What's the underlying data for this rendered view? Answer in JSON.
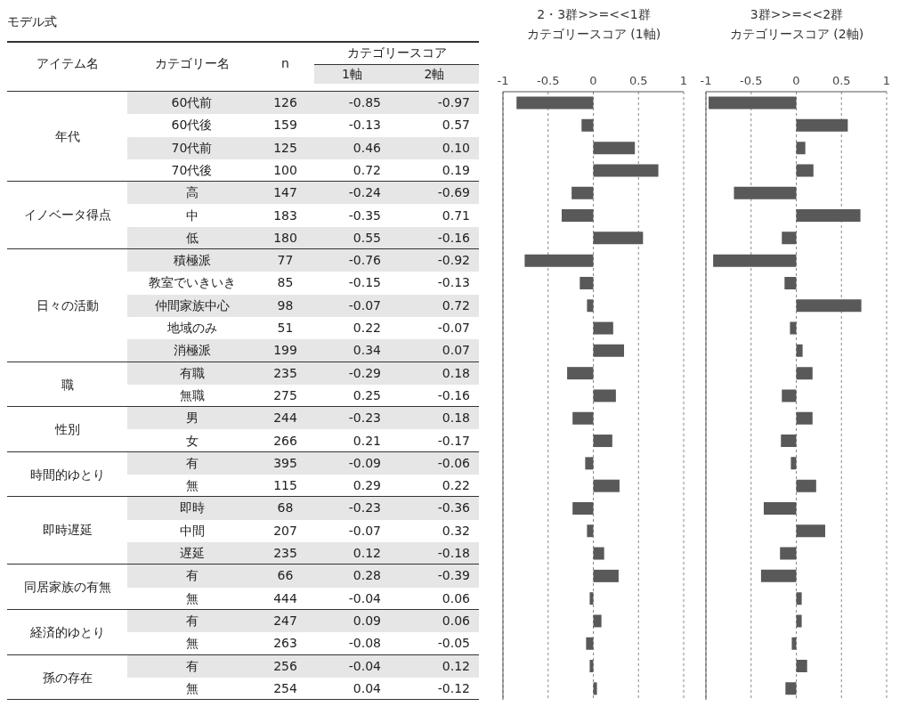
{
  "chart_data": [
    {
      "type": "bar",
      "orientation": "horizontal",
      "title": "2・3群>>=<<1群",
      "subtitle": "カテゴリースコア (1軸)",
      "categories": [
        "60代前",
        "60代後",
        "70代前",
        "70代後",
        "高",
        "中",
        "低",
        "積極派",
        "教室でいきいき",
        "仲間家族中心",
        "地域のみ",
        "消極派",
        "有職",
        "無職",
        "男",
        "女",
        "有",
        "無",
        "即時",
        "中間",
        "遅延",
        "有",
        "無",
        "有",
        "無",
        "有",
        "無"
      ],
      "values": [
        -0.85,
        -0.13,
        0.46,
        0.72,
        -0.24,
        -0.35,
        0.55,
        -0.76,
        -0.15,
        -0.07,
        0.22,
        0.34,
        -0.29,
        0.25,
        -0.23,
        0.21,
        -0.09,
        0.29,
        -0.23,
        -0.07,
        0.12,
        0.28,
        -0.04,
        0.09,
        -0.08,
        -0.04,
        0.04
      ],
      "value_labels": [
        "-0.85",
        "-0.13",
        "0.46",
        "0.72",
        "-0.24",
        "-0.35",
        "0.55",
        "-0.76",
        "-0.15",
        "-0.07",
        "0.22",
        "0.34",
        "-0.29",
        "0.25",
        "-0.23",
        "0.21",
        "-0.09",
        "0.29",
        "-0.23",
        "-0.07",
        "0.12",
        "0.28",
        "-0.04",
        "0.09",
        "-0.08",
        "-0.04",
        "0.04"
      ],
      "color": "#595959",
      "xlim": [
        -1,
        1
      ],
      "xticks": [
        -1,
        -0.5,
        0,
        0.5,
        1
      ],
      "grid": "x",
      "tick_labels": "x",
      "annotations": [
        "モデル式",
        "アイテム名",
        "カテゴリー名",
        "n",
        "カテゴリースコア",
        "1軸",
        "2軸",
        "年代",
        "イノベータ得点",
        "日々の活動",
        "職",
        "性別",
        "時間的ゆとり",
        "即時遅延",
        "同居家族の有無",
        "経済的ゆとり",
        "孫の存在",
        "126",
        "159",
        "125",
        "100",
        "147",
        "183",
        "180",
        "77",
        "85",
        "98",
        "51",
        "199",
        "235",
        "275",
        "244",
        "266",
        "395",
        "115",
        "68",
        "207",
        "235",
        "66",
        "444",
        "247",
        "263",
        "256",
        "254"
      ]
    },
    {
      "type": "bar",
      "orientation": "horizontal",
      "title": "3群>>=<<2群",
      "subtitle": "カテゴリースコア (2軸)",
      "categories": [
        null,
        null,
        null,
        null,
        null,
        null,
        null,
        null,
        null,
        null,
        null,
        null,
        null,
        null,
        null,
        null,
        null,
        null,
        null,
        null,
        null,
        null,
        null,
        null,
        null,
        null,
        null
      ],
      "values": [
        -0.97,
        0.57,
        0.1,
        0.19,
        -0.69,
        0.71,
        -0.16,
        -0.92,
        -0.13,
        0.72,
        -0.07,
        0.07,
        0.18,
        -0.16,
        0.18,
        -0.17,
        -0.06,
        0.22,
        -0.36,
        0.32,
        -0.18,
        -0.39,
        0.06,
        0.06,
        -0.05,
        0.12,
        -0.12
      ],
      "value_labels": [
        "-0.97",
        "0.57",
        "0.10",
        "0.19",
        "-0.69",
        "0.71",
        "-0.16",
        "-0.92",
        "-0.13",
        "0.72",
        "-0.07",
        "0.07",
        "0.18",
        "-0.16",
        "0.18",
        "-0.17",
        "-0.06",
        "0.22",
        "-0.36",
        "0.32",
        "-0.18",
        "-0.39",
        "0.06",
        "0.06",
        "-0.05",
        "0.12",
        "-0.12"
      ],
      "color": "#595959",
      "xlim": [
        -1,
        1
      ],
      "xticks": [
        -1,
        -0.5,
        0,
        0.5,
        1
      ],
      "grid": "x",
      "tick_labels": "x"
    }
  ]
}
